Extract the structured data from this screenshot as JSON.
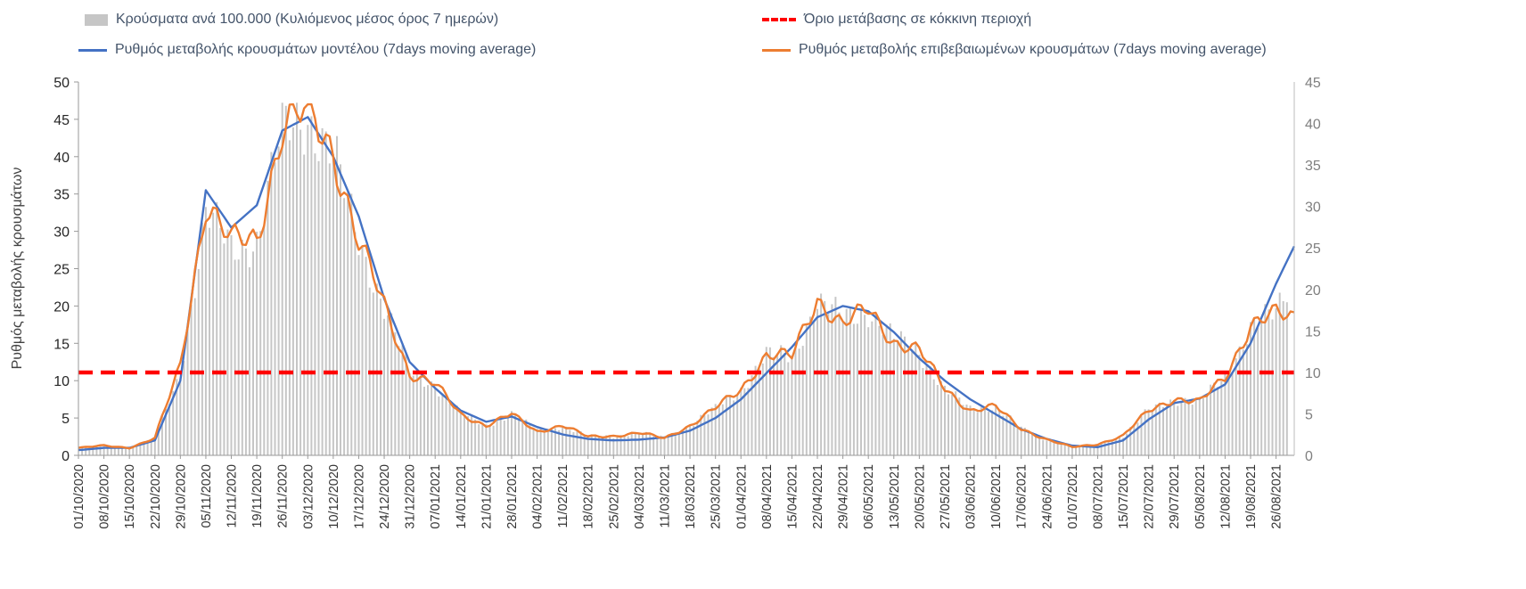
{
  "chart_data": {
    "type": "combo-bar-line",
    "title": "",
    "ylabel_left": "Ρυθμός μεταβολής κρουσμάτων",
    "axis_left": {
      "min": 0,
      "max": 50,
      "tick_step": 5
    },
    "axis_right": {
      "min": 0,
      "max": 45,
      "tick_step": 5
    },
    "grid": "off",
    "legend_position": "top",
    "values_note": "values sampled weekly at each x tick label; the 49th value is an unlabeled end point ~5 days past the last tick",
    "days_past_last_tick": 5,
    "x_tick_labels": [
      "01/10/2020",
      "08/10/2020",
      "15/10/2020",
      "22/10/2020",
      "29/10/2020",
      "05/11/2020",
      "12/11/2020",
      "19/11/2020",
      "26/11/2020",
      "03/12/2020",
      "10/12/2020",
      "17/12/2020",
      "24/12/2020",
      "31/12/2020",
      "07/01/2021",
      "14/01/2021",
      "21/01/2021",
      "28/01/2021",
      "04/02/2021",
      "11/02/2021",
      "18/02/2021",
      "25/02/2021",
      "04/03/2021",
      "11/03/2021",
      "18/03/2021",
      "25/03/2021",
      "01/04/2021",
      "08/04/2021",
      "15/04/2021",
      "22/04/2021",
      "29/04/2021",
      "06/05/2021",
      "13/05/2021",
      "20/05/2021",
      "27/05/2021",
      "03/06/2021",
      "10/06/2021",
      "17/06/2021",
      "24/06/2021",
      "01/07/2021",
      "08/07/2021",
      "15/07/2021",
      "22/07/2021",
      "29/07/2021",
      "05/08/2021",
      "12/08/2021",
      "19/08/2021",
      "26/08/2021"
    ],
    "threshold": {
      "label": "Όριο μετάβασης σε κόκκινη περιοχή",
      "value_right_axis": 10,
      "value_left_axis": 11.1,
      "color": "#ff0000"
    },
    "series": [
      {
        "id": "cases-bars",
        "name": "Κρούσματα ανά 100.000 (Κυλιόμενος μέσος όρος 7 ημερών)",
        "type": "bar",
        "axis": "right",
        "color": "#c6c6c6",
        "weekly_values": [
          0.9,
          1.1,
          0.9,
          2,
          10,
          29,
          25,
          26,
          39,
          41,
          36,
          26,
          18,
          10,
          8.5,
          5,
          3.6,
          5,
          3,
          3.5,
          2.3,
          2.3,
          2.7,
          2.1,
          3.6,
          5.6,
          8,
          12,
          12,
          18.5,
          16.5,
          17.5,
          14,
          12.5,
          8,
          5.5,
          6,
          3.2,
          1.9,
          1,
          1.3,
          2.3,
          5.4,
          6.8,
          6.4,
          9.5,
          15.5,
          17,
          22
        ]
      },
      {
        "id": "model-rate-line",
        "name": "Ρυθμός μεταβολής κρουσμάτων μοντέλου (7days moving average)",
        "type": "line",
        "axis": "left",
        "color": "#4472c4",
        "jagged": false,
        "weekly_values": [
          0.7,
          1.0,
          1.0,
          2.0,
          10,
          35.5,
          30.5,
          33.5,
          43.5,
          45.3,
          40,
          32,
          21,
          12.5,
          9,
          6,
          4.5,
          5.2,
          3.8,
          2.8,
          2.2,
          2.0,
          2.1,
          2.4,
          3.3,
          5.0,
          7.5,
          11,
          14.5,
          18.5,
          20,
          19.3,
          16.5,
          13,
          10,
          7.5,
          5.5,
          3.5,
          2.2,
          1.3,
          1.1,
          2.0,
          4.8,
          7.0,
          7.6,
          9.5,
          15,
          23,
          28
        ]
      },
      {
        "id": "confirmed-rate-line",
        "name": "Ρυθμός μεταβολής επιβεβαιωμένων κρουσμάτων (7days moving average)",
        "type": "line",
        "axis": "left",
        "color": "#ed7d31",
        "jagged": true,
        "weekly_values": [
          1.0,
          1.3,
          1.0,
          2.3,
          12,
          34,
          28.5,
          29,
          44,
          46,
          41,
          28.5,
          20,
          11,
          9.5,
          5.5,
          4,
          5.5,
          3.2,
          4,
          2.5,
          2.6,
          3,
          2.3,
          4,
          6.3,
          8.8,
          13.5,
          13.2,
          21,
          17.5,
          19.5,
          15.3,
          14,
          9,
          6,
          6.5,
          3.6,
          2.1,
          1.1,
          1.5,
          2.6,
          6,
          7.6,
          7.1,
          10.5,
          17.5,
          18.8,
          18.5
        ]
      }
    ]
  }
}
